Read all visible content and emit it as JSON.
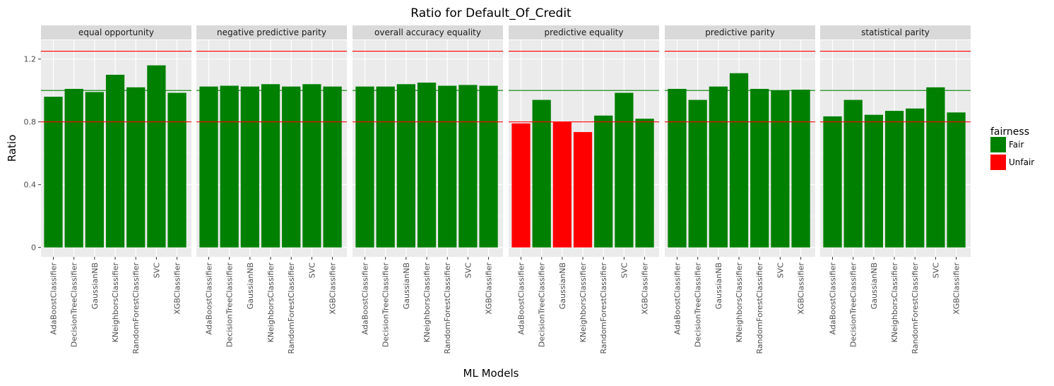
{
  "chart_data": {
    "type": "bar",
    "title": "Ratio for Default_Of_Credit",
    "xlabel": "ML Models",
    "ylabel": "Ratio",
    "ylim": [
      -0.06,
      1.32
    ],
    "yticks": [
      0,
      0.4,
      0.8,
      1.2
    ],
    "ytick_labels": [
      "0",
      "0.4",
      "0.8",
      "1.2"
    ],
    "reference_lines": [
      {
        "y": 1.25,
        "color": "#ff0000"
      },
      {
        "y": 1.0,
        "color": "#008000"
      },
      {
        "y": 0.8,
        "color": "#ff0000"
      }
    ],
    "categories": [
      "AdaBoostClassifier",
      "DecisionTreeClassifier",
      "GaussianNB",
      "KNeighborsClassifier",
      "RandomForestClassifier",
      "SVC",
      "XGBClassifier"
    ],
    "facets": [
      {
        "name": "equal opportunity",
        "values": [
          0.96,
          1.01,
          0.99,
          1.1,
          1.02,
          1.16,
          0.985
        ],
        "fairness": [
          "Fair",
          "Fair",
          "Fair",
          "Fair",
          "Fair",
          "Fair",
          "Fair"
        ]
      },
      {
        "name": "negative predictive parity",
        "values": [
          1.025,
          1.03,
          1.025,
          1.04,
          1.025,
          1.04,
          1.025
        ],
        "fairness": [
          "Fair",
          "Fair",
          "Fair",
          "Fair",
          "Fair",
          "Fair",
          "Fair"
        ]
      },
      {
        "name": "overall accuracy equality",
        "values": [
          1.025,
          1.025,
          1.04,
          1.05,
          1.03,
          1.035,
          1.03
        ],
        "fairness": [
          "Fair",
          "Fair",
          "Fair",
          "Fair",
          "Fair",
          "Fair",
          "Fair"
        ]
      },
      {
        "name": "predictive equality",
        "values": [
          0.79,
          0.94,
          0.8,
          0.735,
          0.84,
          0.985,
          0.82
        ],
        "fairness": [
          "Unfair",
          "Fair",
          "Unfair",
          "Unfair",
          "Fair",
          "Fair",
          "Fair"
        ]
      },
      {
        "name": "predictive parity",
        "values": [
          1.01,
          0.94,
          1.025,
          1.11,
          1.01,
          1.0,
          1.005
        ],
        "fairness": [
          "Fair",
          "Fair",
          "Fair",
          "Fair",
          "Fair",
          "Fair",
          "Fair"
        ]
      },
      {
        "name": "statistical parity",
        "values": [
          0.835,
          0.94,
          0.845,
          0.87,
          0.885,
          1.02,
          0.86
        ],
        "fairness": [
          "Fair",
          "Fair",
          "Fair",
          "Fair",
          "Fair",
          "Fair",
          "Fair"
        ]
      }
    ],
    "legend": {
      "title": "fairness",
      "position": "right",
      "entries": [
        {
          "label": "Fair",
          "color": "#008000"
        },
        {
          "label": "Unfair",
          "color": "#ff0000"
        }
      ]
    },
    "grid": true
  }
}
